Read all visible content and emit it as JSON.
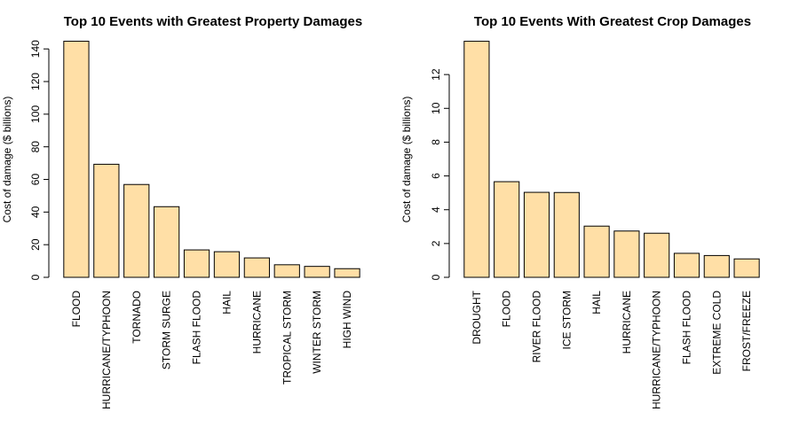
{
  "style": {
    "bar_color": "#FFDFA6"
  },
  "chart_data": [
    {
      "type": "bar",
      "title": "Top 10 Events with Greatest Property Damages",
      "xlabel": "",
      "ylabel": "Cost of damage ($ billions)",
      "ylim": [
        0,
        145
      ],
      "yticks": [
        0,
        20,
        40,
        60,
        80,
        100,
        120,
        140
      ],
      "grid": false,
      "categories": [
        "FLOOD",
        "HURRICANE/TYPHOON",
        "TORNADO",
        "STORM SURGE",
        "FLASH FLOOD",
        "HAIL",
        "HURRICANE",
        "TROPICAL STORM",
        "WINTER STORM",
        "HIGH WIND"
      ],
      "values": [
        144.7,
        69.3,
        56.9,
        43.3,
        16.8,
        15.7,
        11.9,
        7.7,
        6.7,
        5.3
      ]
    },
    {
      "type": "bar",
      "title": "Top 10 Events With Greatest Crop Damages",
      "xlabel": "",
      "ylabel": "Cost of damage ($ billions)",
      "ylim": [
        0,
        14
      ],
      "yticks": [
        0,
        2,
        4,
        6,
        8,
        10,
        12
      ],
      "grid": false,
      "categories": [
        "DROUGHT",
        "FLOOD",
        "RIVER FLOOD",
        "ICE STORM",
        "HAIL",
        "HURRICANE",
        "HURRICANE/TYPHOON",
        "FLASH FLOOD",
        "EXTREME COLD",
        "FROST/FREEZE"
      ],
      "values": [
        13.97,
        5.66,
        5.03,
        5.02,
        3.03,
        2.74,
        2.61,
        1.42,
        1.29,
        1.09
      ]
    }
  ]
}
